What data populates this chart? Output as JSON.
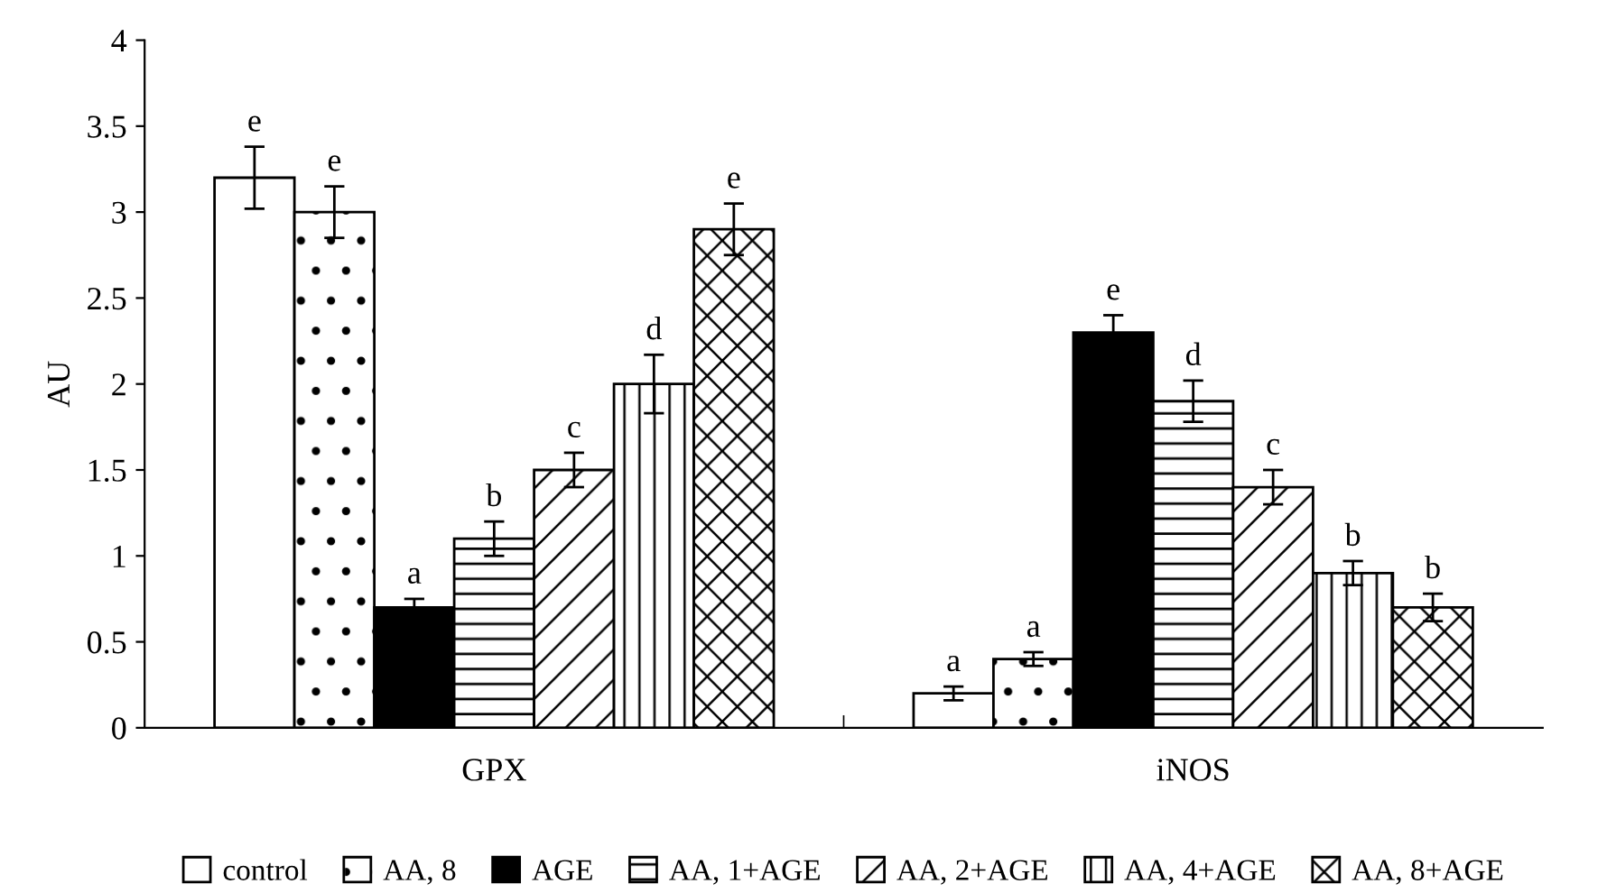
{
  "chart_data": {
    "type": "bar",
    "ylabel": "AU",
    "categories": [
      "GPX",
      "iNOS"
    ],
    "series": [
      {
        "name": "control",
        "color": "#ffffff",
        "values": [
          3.2,
          0.2
        ],
        "errors": [
          0.18,
          0.04
        ],
        "value_labels": [
          "e",
          "a"
        ]
      },
      {
        "name": "AA, 8",
        "color": "#ffffff",
        "values": [
          3.0,
          0.4
        ],
        "errors": [
          0.15,
          0.04
        ],
        "value_labels": [
          "e",
          "a"
        ]
      },
      {
        "name": "AGE",
        "color": "#000000",
        "values": [
          0.7,
          2.3
        ],
        "errors": [
          0.05,
          0.1
        ],
        "value_labels": [
          "a",
          "e"
        ]
      },
      {
        "name": "AA, 1+AGE",
        "color": "#ffffff",
        "values": [
          1.1,
          1.9
        ],
        "errors": [
          0.1,
          0.12
        ],
        "value_labels": [
          "b",
          "d"
        ]
      },
      {
        "name": "AA, 2+AGE",
        "color": "#ffffff",
        "values": [
          1.5,
          1.4
        ],
        "errors": [
          0.1,
          0.1
        ],
        "value_labels": [
          "c",
          "c"
        ]
      },
      {
        "name": "AA, 4+AGE",
        "color": "#ffffff",
        "values": [
          2.0,
          0.9
        ],
        "errors": [
          0.17,
          0.07
        ],
        "value_labels": [
          "d",
          "b"
        ]
      },
      {
        "name": "AA, 8+AGE",
        "color": "#ffffff",
        "values": [
          2.9,
          0.7
        ],
        "errors": [
          0.15,
          0.08
        ],
        "value_labels": [
          "e",
          "b"
        ]
      }
    ],
    "ylim": [
      0,
      4
    ],
    "yticks": [
      0,
      0.5,
      1,
      1.5,
      2,
      2.5,
      3,
      3.5,
      4
    ],
    "grid": false,
    "legend": "bottom"
  }
}
